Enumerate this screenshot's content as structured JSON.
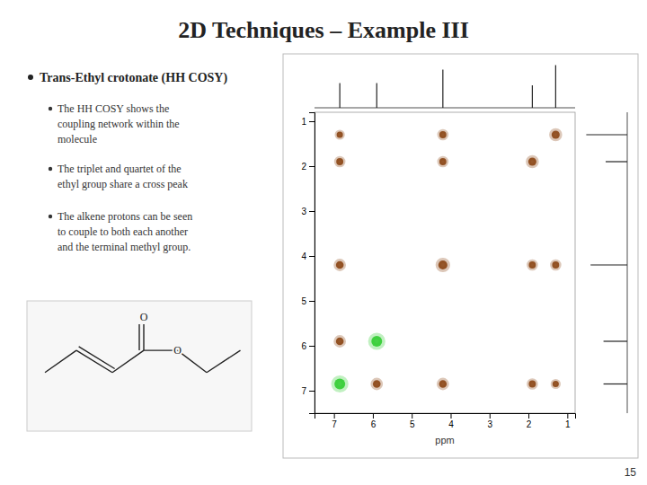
{
  "chart_data": [
    {
      "type": "scatter",
      "title": "2D Techniques – Example III",
      "annotations": [
        "Trans-Ethyl crotonate (HH COSY)",
        "The HH COSY shows the\ncoupling network within the\nmolecule",
        "The triplet and quartet of the\nethyl group share a cross peak",
        "The alkene protons can be seen\nto couple to both each another\nand the terminal methyl group.",
        "O",
        "O",
        "15"
      ],
      "xlabel": "ppm",
      "x": [
        6.85,
        6.85,
        5.9,
        5.9,
        4.2,
        4.2,
        6.85,
        1.9,
        1.3,
        1.9,
        4.2,
        1.3,
        4.2,
        1.9,
        6.85,
        1.3,
        6.85
      ],
      "values": [
        6.85,
        5.9,
        6.85,
        5.9,
        4.2,
        6.85,
        4.2,
        1.9,
        1.3,
        4.2,
        1.9,
        4.2,
        1.3,
        6.85,
        1.9,
        6.85,
        1.3
      ],
      "sizes": [
        35,
        18,
        18,
        35,
        25,
        18,
        18,
        20,
        20,
        15,
        15,
        15,
        15,
        15,
        15,
        12,
        12
      ],
      "colors": [
        "#32CD32",
        "#8B4513",
        "#8B4513",
        "#32CD32",
        "#8B4513",
        "#8B4513",
        "#8B4513",
        "#8B4513",
        "#8B4513",
        "#8B4513",
        "#8B4513",
        "#8B4513",
        "#8B4513",
        "#8B4513",
        "#8B4513",
        "#8B4513",
        "#8B4513"
      ],
      "xlim": [
        7.5,
        0.8
      ],
      "ylim": [
        7.5,
        0.8
      ],
      "xticks": [
        7,
        6,
        5,
        4,
        3,
        2,
        1
      ],
      "yticks": [
        7,
        6,
        5,
        4,
        3,
        2,
        1
      ],
      "grid": false
    },
    {
      "type": "stem",
      "x": [
        6.85,
        5.9,
        4.2,
        1.9,
        1.3
      ],
      "values": [
        0.55,
        0.55,
        0.85,
        0.5,
        0.95
      ],
      "xlim": [
        7.5,
        0.8
      ],
      "ylim": [
        0,
        1
      ],
      "tick_labels": false
    }
  ]
}
